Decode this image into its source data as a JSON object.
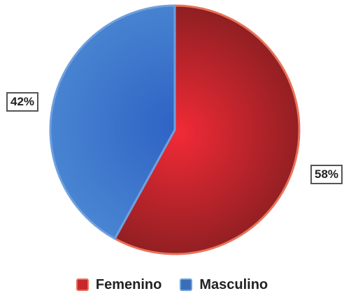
{
  "chart_data": {
    "type": "pie",
    "title": "",
    "slices": [
      {
        "name": "Femenino",
        "value": 58,
        "label": "58%",
        "color": "#c8282e",
        "edge_color": "#e8735a"
      },
      {
        "name": "Masculino",
        "value": 42,
        "label": "42%",
        "color": "#3a6fb8",
        "edge_color": "#6fa0de"
      }
    ],
    "start_angle_deg": 0,
    "direction": "clockwise",
    "legend": {
      "position": "bottom",
      "items": [
        "Femenino",
        "Masculino"
      ]
    }
  }
}
